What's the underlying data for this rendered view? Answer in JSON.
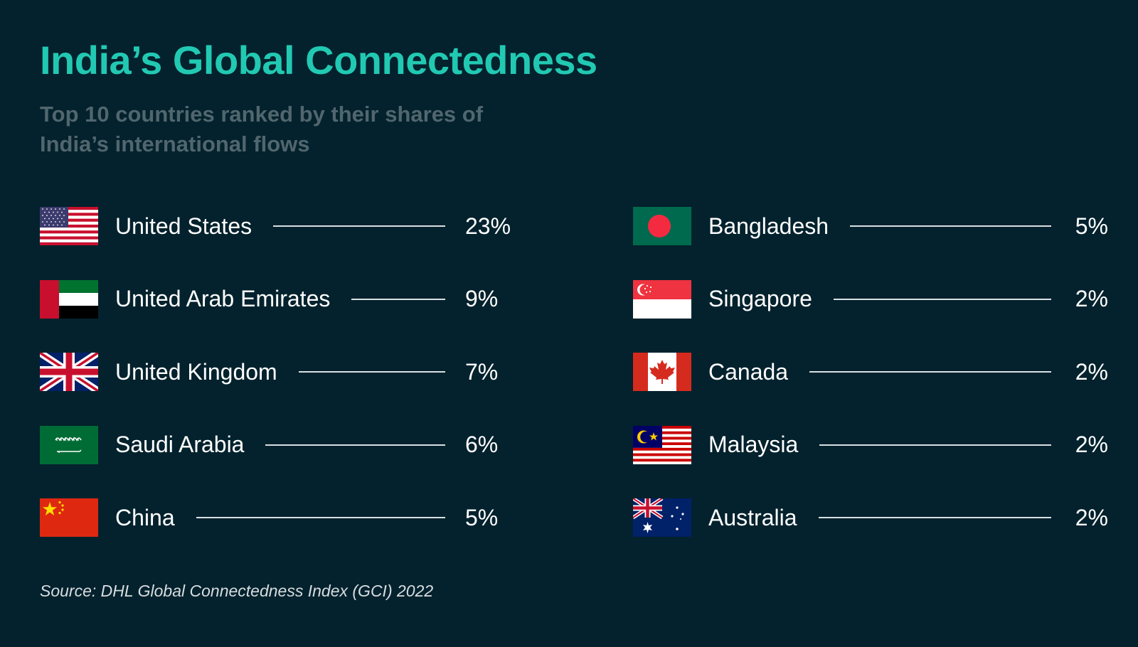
{
  "title": "India’s Global Connectedness",
  "subtitle": "Top 10 countries ranked by their shares of India’s international flows",
  "left_column": [
    {
      "country": "United States",
      "share": "23%",
      "flag": "us-flag"
    },
    {
      "country": "United Arab Emirates",
      "share": "9%",
      "flag": "uae-flag"
    },
    {
      "country": "United Kingdom",
      "share": "7%",
      "flag": "uk-flag"
    },
    {
      "country": "Saudi Arabia",
      "share": "6%",
      "flag": "saudi-arabia-flag"
    },
    {
      "country": "China",
      "share": "5%",
      "flag": "china-flag"
    }
  ],
  "right_column": [
    {
      "country": "Bangladesh",
      "share": "5%",
      "flag": "bangladesh-flag"
    },
    {
      "country": "Singapore",
      "share": "2%",
      "flag": "singapore-flag"
    },
    {
      "country": "Canada",
      "share": "2%",
      "flag": "canada-flag"
    },
    {
      "country": "Malaysia",
      "share": "2%",
      "flag": "malaysia-flag"
    },
    {
      "country": "Australia",
      "share": "2%",
      "flag": "australia-flag"
    }
  ],
  "source": "Source: DHL Global Connectedness Index (GCI) 2022",
  "colors": {
    "background": "#03222d",
    "title": "#22c9b2",
    "subtitle": "#51666e",
    "text": "#ffffff"
  }
}
